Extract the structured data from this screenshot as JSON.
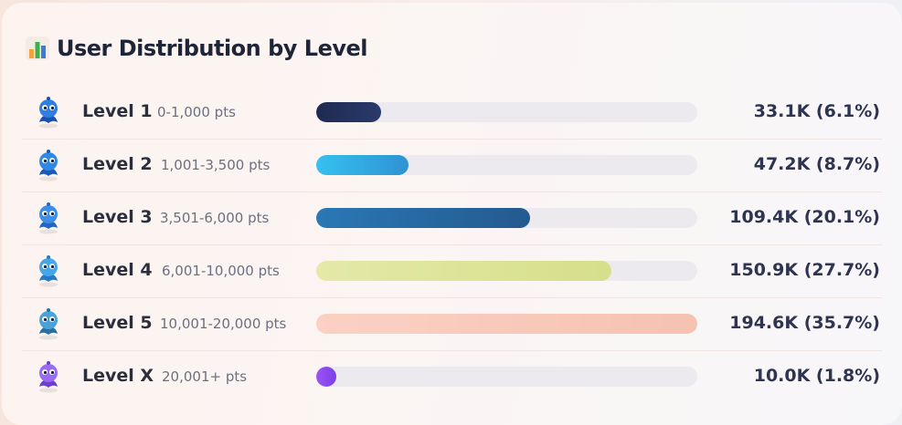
{
  "header": {
    "title": "User Distribution by Level",
    "icon": "bar-chart-icon"
  },
  "chart_data": {
    "type": "bar",
    "orientation": "horizontal",
    "title": "User Distribution by Level",
    "categories": [
      "Level 1",
      "Level 2",
      "Level 3",
      "Level 4",
      "Level 5",
      "Level X"
    ],
    "ranges": [
      "0-1,000 pts",
      "1,001-3,500 pts",
      "3,501-6,000 pts",
      "6,001-10,000 pts",
      "10,001-20,000 pts",
      "20,001+ pts"
    ],
    "values": [
      33.1,
      47.2,
      109.4,
      150.9,
      194.6,
      10.0
    ],
    "value_unit": "K users",
    "percentages": [
      6.1,
      8.7,
      20.1,
      27.7,
      35.7,
      1.8
    ],
    "labels": [
      "33.1K (6.1%)",
      "47.2K (8.7%)",
      "109.4K (20.1%)",
      "150.9K (27.7%)",
      "194.6K (35.7%)",
      "10.0K (1.8%)"
    ],
    "xlim": [
      0,
      194.6
    ],
    "colors": [
      "#25305a",
      "#35b6ea",
      "#2a6fa8",
      "#dde49a",
      "#f9cbbd",
      "#8b4cf0"
    ]
  }
}
